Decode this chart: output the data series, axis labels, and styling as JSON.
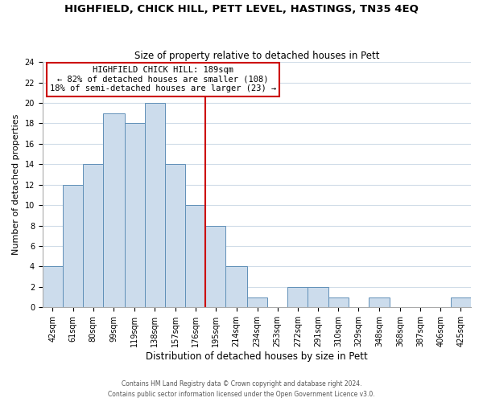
{
  "title": "HIGHFIELD, CHICK HILL, PETT LEVEL, HASTINGS, TN35 4EQ",
  "subtitle": "Size of property relative to detached houses in Pett",
  "xlabel": "Distribution of detached houses by size in Pett",
  "ylabel": "Number of detached properties",
  "bar_color": "#ccdcec",
  "bar_edge_color": "#6090b8",
  "bin_labels": [
    "42sqm",
    "61sqm",
    "80sqm",
    "99sqm",
    "119sqm",
    "138sqm",
    "157sqm",
    "176sqm",
    "195sqm",
    "214sqm",
    "234sqm",
    "253sqm",
    "272sqm",
    "291sqm",
    "310sqm",
    "329sqm",
    "348sqm",
    "368sqm",
    "387sqm",
    "406sqm",
    "425sqm"
  ],
  "bin_edges": [
    42,
    61,
    80,
    99,
    119,
    138,
    157,
    176,
    195,
    214,
    234,
    253,
    272,
    291,
    310,
    329,
    348,
    368,
    387,
    406,
    425,
    444
  ],
  "counts": [
    4,
    12,
    14,
    19,
    18,
    20,
    14,
    10,
    8,
    4,
    1,
    0,
    2,
    2,
    1,
    0,
    1,
    0,
    0,
    0,
    1
  ],
  "redline_x": 195,
  "annotation_title": "HIGHFIELD CHICK HILL: 189sqm",
  "annotation_line1": "← 82% of detached houses are smaller (108)",
  "annotation_line2": "18% of semi-detached houses are larger (23) →",
  "annotation_box_color": "#ffffff",
  "annotation_border_color": "#cc0000",
  "redline_color": "#cc0000",
  "ylim": [
    0,
    24
  ],
  "yticks": [
    0,
    2,
    4,
    6,
    8,
    10,
    12,
    14,
    16,
    18,
    20,
    22,
    24
  ],
  "footer1": "Contains HM Land Registry data © Crown copyright and database right 2024.",
  "footer2": "Contains public sector information licensed under the Open Government Licence v3.0.",
  "background_color": "#ffffff",
  "grid_color": "#d0dce8",
  "title_fontsize": 9.5,
  "subtitle_fontsize": 8.5,
  "tick_fontsize": 7,
  "ylabel_fontsize": 8,
  "xlabel_fontsize": 8.5
}
